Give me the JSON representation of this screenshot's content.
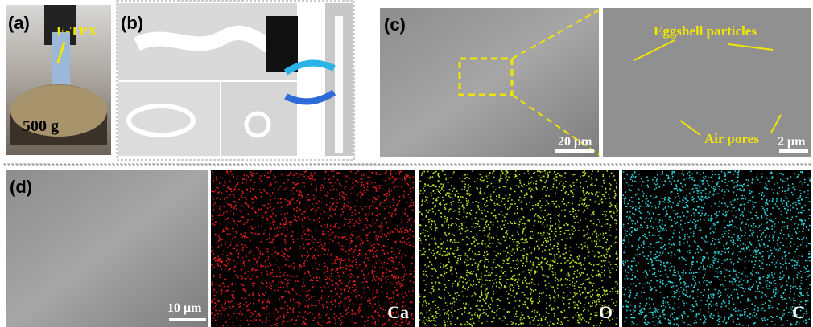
{
  "panels": {
    "a": {
      "label": "(a)",
      "sample": "E-TPX",
      "weight": "500 g"
    },
    "b": {
      "label": "(b)"
    },
    "c": {
      "label": "(c)",
      "scale_left": "20 μm",
      "particles": "Eggshell particles",
      "pores": "Air pores",
      "scale_right": "2 μm"
    },
    "d": {
      "label": "(d)",
      "scale": "10 μm",
      "maps": [
        "Ca",
        "O",
        "C"
      ]
    }
  }
}
